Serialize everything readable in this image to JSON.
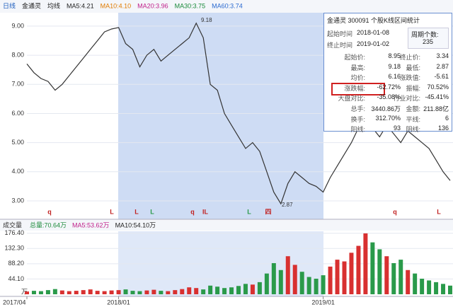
{
  "toolbar": {
    "items": [
      {
        "text": "日线",
        "color": "#1f5fbf"
      },
      {
        "text": "金通灵",
        "color": "#222"
      },
      {
        "text": "均线",
        "color": "#222"
      },
      {
        "text": "MA5:4.21",
        "color": "#222"
      },
      {
        "text": "MA10:4.10",
        "color": "#e07b00"
      },
      {
        "text": "MA20:3.96",
        "color": "#c0208a"
      },
      {
        "text": "MA30:3.75",
        "color": "#1a8a3a"
      },
      {
        "text": "MA60:3.74",
        "color": "#2a6ad0"
      }
    ]
  },
  "chart_data": [
    {
      "type": "line",
      "color": "#333333",
      "up_color": "#d83030",
      "down_color": "#2a9a4a",
      "x": [
        0,
        1,
        2,
        3,
        4,
        5,
        6,
        7,
        8,
        9,
        10,
        11,
        12,
        13,
        14,
        15,
        16,
        17,
        18,
        19,
        20,
        21,
        22,
        23,
        24,
        25,
        26,
        27,
        28,
        29,
        30,
        31,
        32,
        33,
        34,
        35,
        36,
        37,
        38,
        39,
        40,
        41,
        42,
        43,
        44,
        45,
        46,
        47,
        48,
        49,
        50,
        51,
        52,
        53,
        54,
        55,
        56,
        57,
        58,
        59,
        60
      ],
      "values": [
        7.7,
        7.4,
        7.2,
        7.1,
        6.8,
        7.0,
        7.3,
        7.6,
        7.9,
        8.2,
        8.5,
        8.8,
        8.9,
        8.95,
        8.4,
        8.2,
        7.6,
        8.0,
        8.2,
        7.8,
        8.0,
        8.2,
        8.4,
        8.6,
        9.1,
        8.6,
        7.0,
        6.8,
        6.0,
        5.6,
        5.2,
        4.8,
        5.0,
        4.7,
        4.0,
        3.3,
        2.9,
        3.6,
        4.0,
        3.8,
        3.6,
        3.5,
        3.3,
        3.8,
        4.2,
        4.6,
        5.0,
        5.5,
        5.8,
        5.5,
        5.2,
        5.6,
        5.3,
        5.0,
        5.4,
        5.2,
        5.0,
        4.8,
        4.4,
        4.0,
        3.7
      ],
      "xlim": [
        0,
        60
      ],
      "ylim": [
        2.49,
        9.41
      ],
      "yticks": [
        {
          "value": 3,
          "label": "3.00"
        },
        {
          "value": 4,
          "label": "4.00"
        },
        {
          "value": 5,
          "label": "5.00"
        },
        {
          "value": 6,
          "label": "6.00"
        },
        {
          "value": 7,
          "label": "7.00"
        },
        {
          "value": 8,
          "label": "8.00"
        },
        {
          "value": 9,
          "label": "9.00"
        }
      ],
      "annotations": [
        "9.18",
        "2.87"
      ],
      "markers": [
        {
          "text": "q",
          "color": "#c02020"
        },
        {
          "text": "L",
          "color": "#c02020"
        },
        {
          "text": "L",
          "color": "#c02020"
        },
        {
          "text": "L",
          "color": "#2a9a4a"
        },
        {
          "text": "q",
          "color": "#c02020"
        },
        {
          "text": "IL",
          "color": "#c02020"
        },
        {
          "text": "L",
          "color": "#2a9a4a"
        },
        {
          "text": "四",
          "color": "#c02020"
        },
        {
          "text": "q",
          "color": "#c02020"
        },
        {
          "text": "L",
          "color": "#c02020"
        }
      ]
    },
    {
      "type": "bar",
      "title": "成交量",
      "legend": [
        {
          "text": "总量:70.64万",
          "color": "#1a8a3a"
        },
        {
          "text": "MA5:53.62万",
          "color": "#c0208a"
        },
        {
          "text": "MA10:54.10万",
          "color": "#222"
        }
      ],
      "values": [
        8,
        10,
        9,
        12,
        15,
        11,
        9,
        10,
        12,
        14,
        10,
        9,
        11,
        12,
        14,
        10,
        9,
        11,
        13,
        10,
        9,
        12,
        15,
        20,
        18,
        14,
        25,
        22,
        18,
        20,
        24,
        30,
        28,
        35,
        60,
        90,
        70,
        110,
        85,
        65,
        50,
        45,
        55,
        80,
        100,
        95,
        120,
        140,
        176,
        150,
        130,
        110,
        90,
        100,
        70,
        60,
        45,
        40,
        35,
        30,
        25
      ],
      "xlim": [
        0,
        60
      ],
      "ylim": [
        0,
        182
      ],
      "yticks": [
        {
          "value": 44.1,
          "label": "44.10"
        },
        {
          "value": 88.2,
          "label": "88.20"
        },
        {
          "value": 132.3,
          "label": "132.30"
        },
        {
          "value": 176.4,
          "label": "176.40"
        }
      ],
      "unit": "万",
      "xticks": [
        {
          "value": 0,
          "label": "2017/04"
        },
        {
          "value": 13,
          "label": "2018/01"
        },
        {
          "value": 42,
          "label": "2019/01"
        }
      ]
    }
  ],
  "stats": {
    "title": "金通灵  300091  个股K线区间统计",
    "start_label": "起始时间",
    "start": "2018-01-08",
    "end_label": "终止时间",
    "end": "2019-01-02",
    "count_label": "周期个数:",
    "count": "235",
    "rows": [
      [
        "起始价:",
        "8.95",
        "终止价:",
        "3.34"
      ],
      [
        "最高:",
        "9.18",
        "最低:",
        "2.87"
      ],
      [
        "均价:",
        "6.16",
        "涨跌值:",
        "-5.61"
      ],
      [
        "涨跌幅:",
        "-62.72%",
        "振幅:",
        "70.52%"
      ],
      [
        "大盘对比:",
        "-35.08%",
        "行业对比:",
        "-45.41%"
      ],
      [
        "总手:",
        "3440.86万",
        "金额:",
        "211.88亿"
      ],
      [
        "换手:",
        "312.70%",
        "平线:",
        "6"
      ],
      [
        "阳线:",
        "93",
        "阴线:",
        "136"
      ]
    ]
  }
}
